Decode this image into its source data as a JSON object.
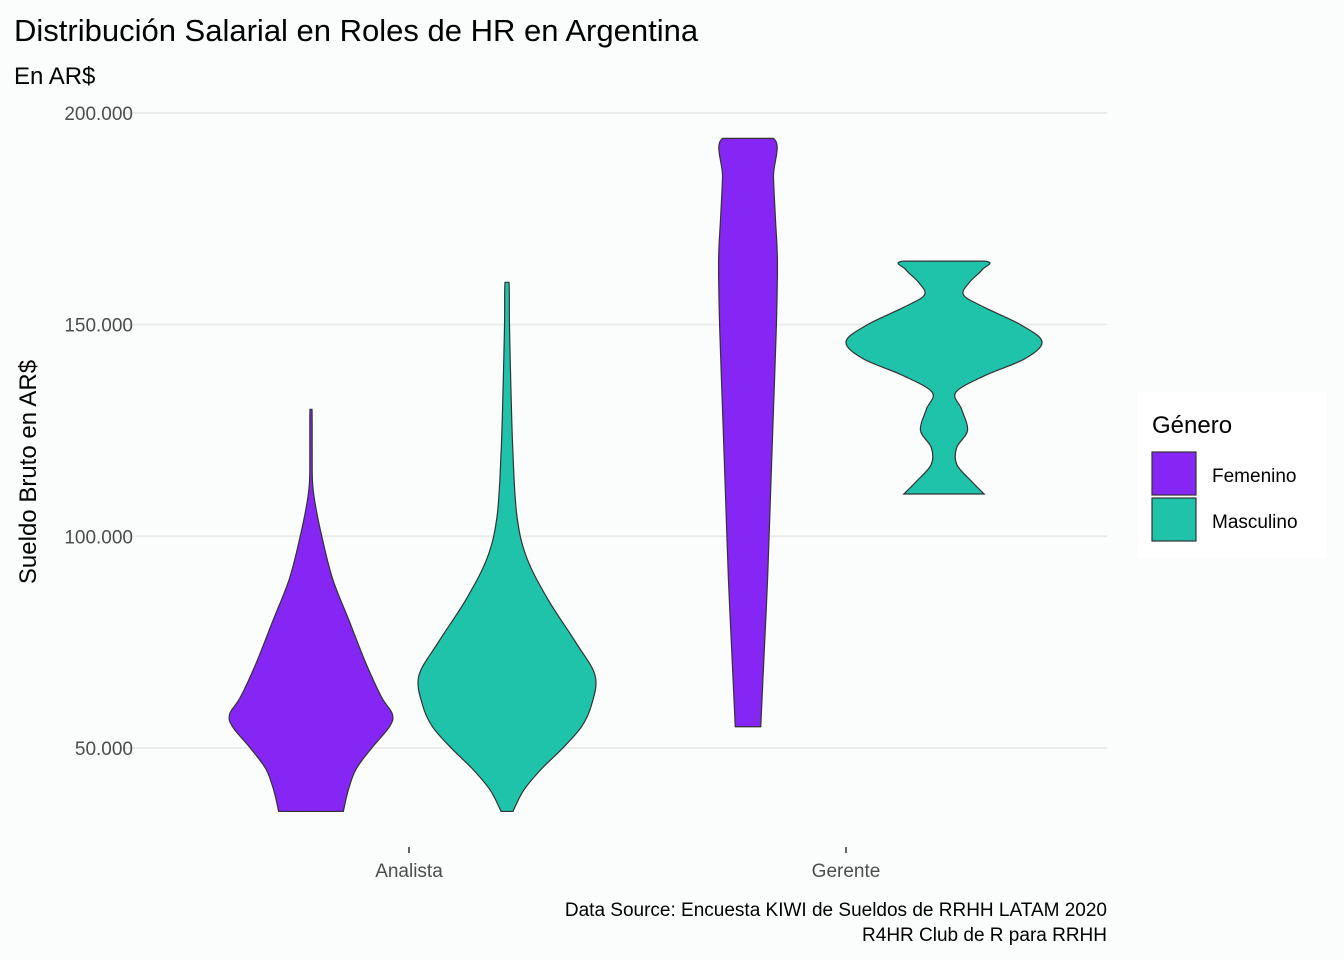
{
  "chart_data": {
    "type": "violin",
    "title": "Distribución Salarial en Roles de HR en Argentina",
    "subtitle": "En AR$",
    "xlabel": "",
    "ylabel": "Sueldo Bruto en AR$",
    "categories": [
      "Analista",
      "Gerente"
    ],
    "ylim": [
      30000,
      205000
    ],
    "yticks": [
      {
        "value": 50000,
        "label": "50.000"
      },
      {
        "value": 100000,
        "label": "100.000"
      },
      {
        "value": 150000,
        "label": "150.000"
      },
      {
        "value": 200000,
        "label": "200.000"
      }
    ],
    "grid": true,
    "legend": {
      "title": "Género",
      "position": "right",
      "entries": [
        {
          "label": "Femenino",
          "color": "#8526f5"
        },
        {
          "label": "Masculino",
          "color": "#1fc3aa"
        }
      ]
    },
    "series": [
      {
        "category": "Analista",
        "group": "Femenino",
        "color": "#8526f5",
        "min": 35000,
        "max": 130000,
        "profile": [
          [
            35000,
            0.33
          ],
          [
            40000,
            0.38
          ],
          [
            45000,
            0.46
          ],
          [
            50000,
            0.62
          ],
          [
            55000,
            0.8
          ],
          [
            58000,
            0.83
          ],
          [
            62000,
            0.72
          ],
          [
            70000,
            0.56
          ],
          [
            80000,
            0.39
          ],
          [
            90000,
            0.22
          ],
          [
            100000,
            0.11
          ],
          [
            108000,
            0.04
          ],
          [
            113000,
            0.015
          ],
          [
            120000,
            0.012
          ],
          [
            130000,
            0.01
          ]
        ]
      },
      {
        "category": "Analista",
        "group": "Masculino",
        "color": "#1fc3aa",
        "min": 35000,
        "max": 160000,
        "profile": [
          [
            35000,
            0.06
          ],
          [
            40000,
            0.17
          ],
          [
            45000,
            0.35
          ],
          [
            50000,
            0.57
          ],
          [
            55000,
            0.76
          ],
          [
            60000,
            0.86
          ],
          [
            67000,
            0.9
          ],
          [
            75000,
            0.7
          ],
          [
            85000,
            0.42
          ],
          [
            95000,
            0.2
          ],
          [
            105000,
            0.1
          ],
          [
            120000,
            0.06
          ],
          [
            135000,
            0.04
          ],
          [
            150000,
            0.025
          ],
          [
            160000,
            0.02
          ]
        ]
      },
      {
        "category": "Gerente",
        "group": "Femenino",
        "color": "#8526f5",
        "min": 55000,
        "max": 194000,
        "profile": [
          [
            55000,
            0.13
          ],
          [
            70000,
            0.16
          ],
          [
            90000,
            0.2
          ],
          [
            110000,
            0.23
          ],
          [
            130000,
            0.26
          ],
          [
            150000,
            0.29
          ],
          [
            165000,
            0.3
          ],
          [
            175000,
            0.28
          ],
          [
            185000,
            0.26
          ],
          [
            194000,
            0.26
          ]
        ]
      },
      {
        "category": "Gerente",
        "group": "Masculino",
        "color": "#1fc3aa",
        "min": 110000,
        "max": 165000,
        "profile": [
          [
            110000,
            0.41
          ],
          [
            113000,
            0.28
          ],
          [
            117000,
            0.13
          ],
          [
            121000,
            0.13
          ],
          [
            125000,
            0.24
          ],
          [
            130000,
            0.18
          ],
          [
            134000,
            0.12
          ],
          [
            138000,
            0.42
          ],
          [
            142000,
            0.83
          ],
          [
            146000,
            1.0
          ],
          [
            150000,
            0.78
          ],
          [
            154000,
            0.42
          ],
          [
            157000,
            0.2
          ],
          [
            160000,
            0.26
          ],
          [
            163000,
            0.39
          ],
          [
            165000,
            0.41
          ]
        ]
      }
    ],
    "caption": [
      "Data Source: Encuesta KIWI de Sueldos de RRHH LATAM 2020",
      "R4HR Club de R para RRHH"
    ]
  }
}
